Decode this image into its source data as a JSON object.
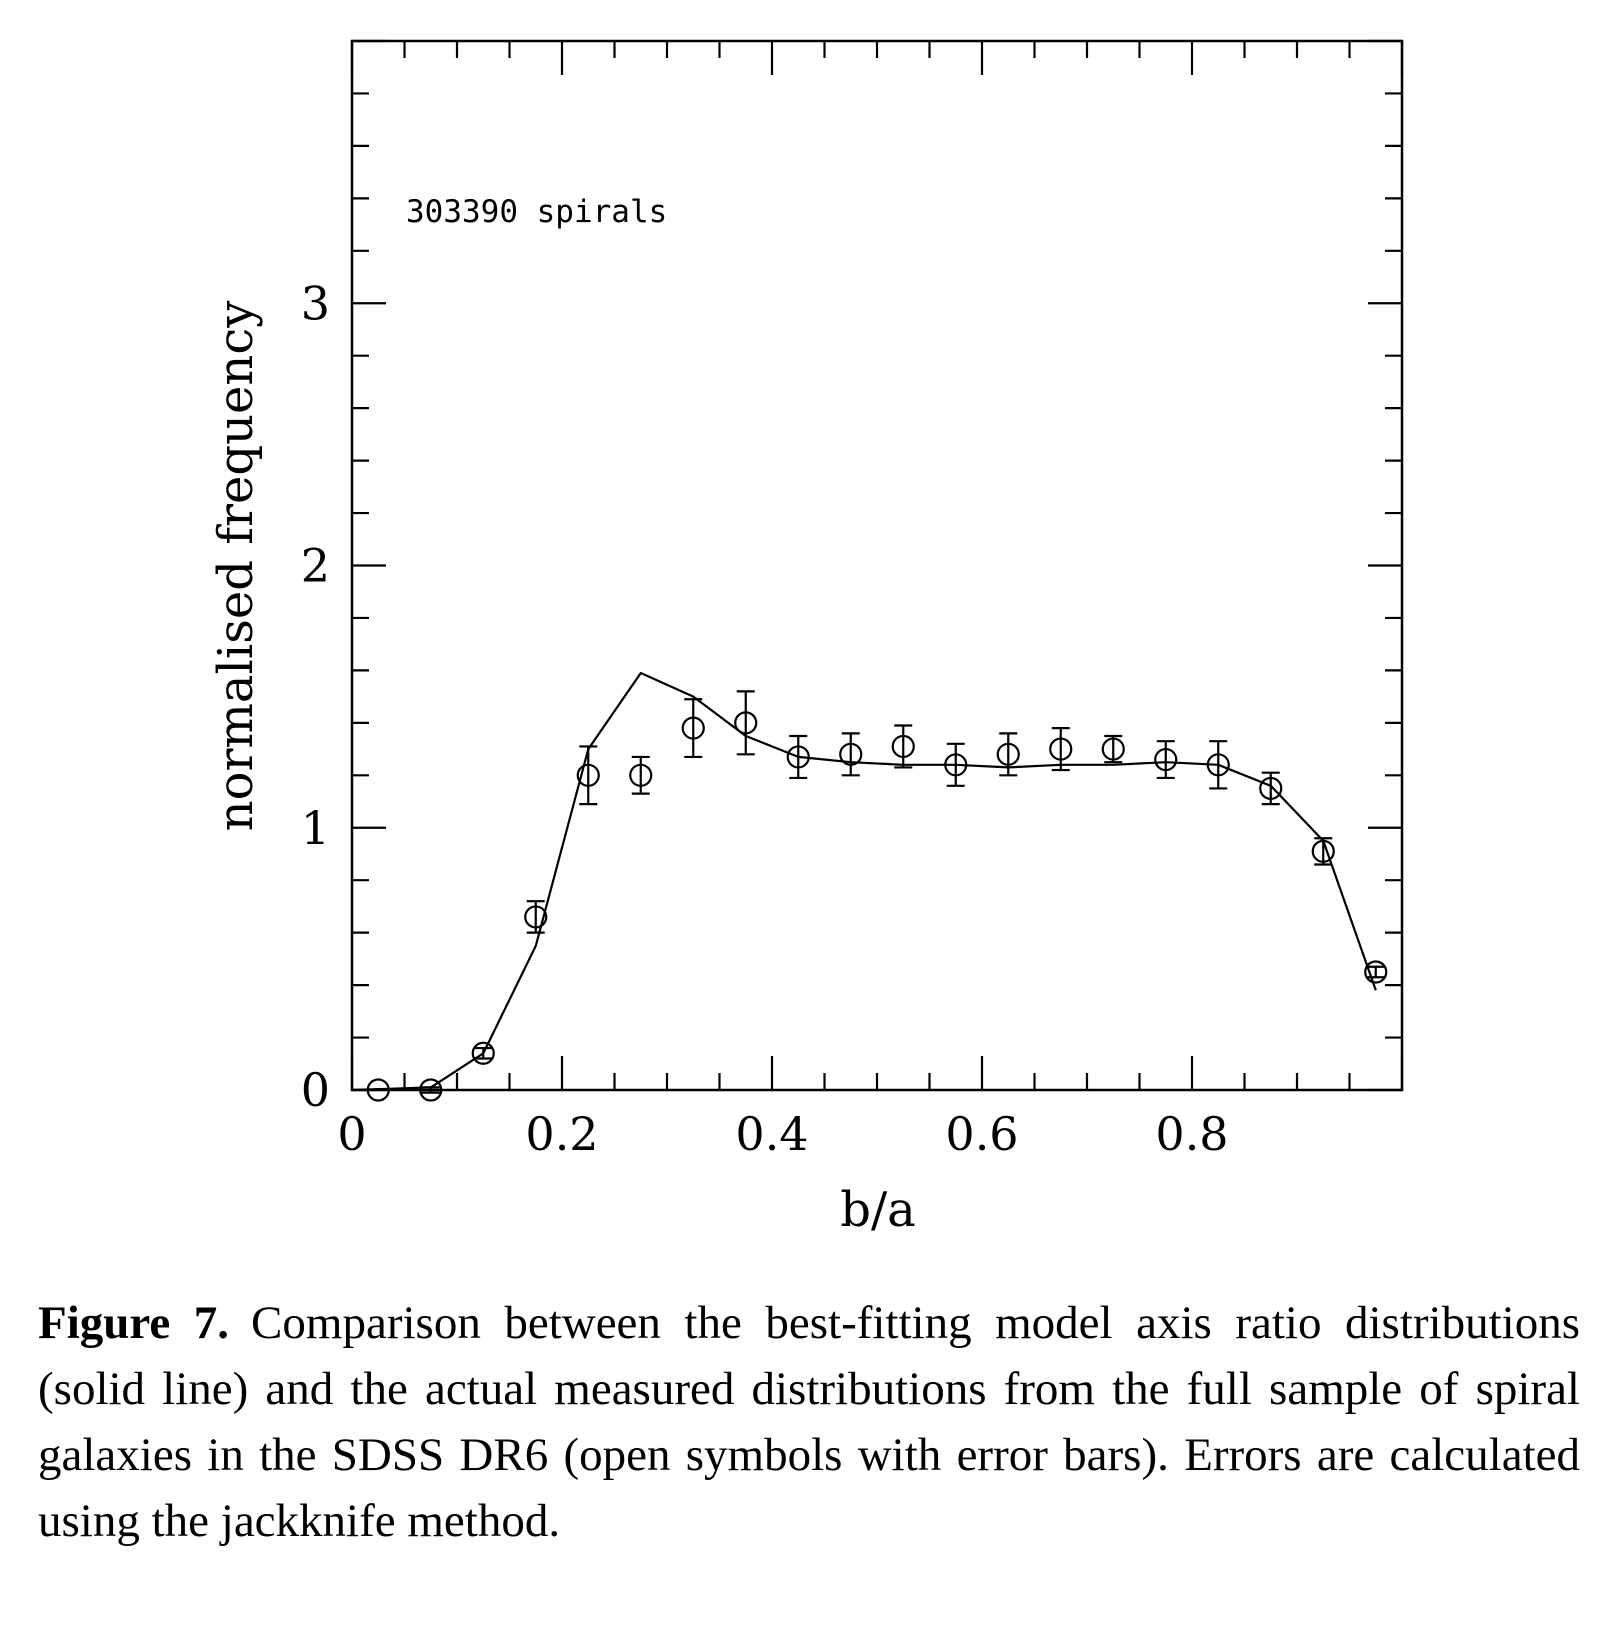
{
  "chart_data": {
    "type": "scatter",
    "xlabel": "b/a",
    "ylabel": "normalised frequency",
    "xlim": [
      0,
      1
    ],
    "ylim": [
      0,
      4
    ],
    "x_ticks": [
      0,
      0.2,
      0.4,
      0.6,
      0.8
    ],
    "x_tick_labels": [
      "0",
      "0.2",
      "0.4",
      "0.6",
      "0.8"
    ],
    "y_ticks": [
      0,
      1,
      2,
      3
    ],
    "y_tick_labels": [
      "0",
      "1",
      "2",
      "3"
    ],
    "grid": false,
    "legend": "none",
    "annotation": "303390 spirals",
    "series": [
      {
        "style": "solid-line",
        "x": [
          0.0,
          0.075,
          0.125,
          0.175,
          0.225,
          0.275,
          0.325,
          0.375,
          0.425,
          0.475,
          0.525,
          0.575,
          0.625,
          0.675,
          0.725,
          0.775,
          0.825,
          0.875,
          0.925,
          0.975
        ],
        "y": [
          0.0,
          0.01,
          0.14,
          0.55,
          1.3,
          1.59,
          1.5,
          1.35,
          1.27,
          1.25,
          1.24,
          1.24,
          1.23,
          1.24,
          1.24,
          1.25,
          1.24,
          1.16,
          0.95,
          0.38
        ]
      },
      {
        "style": "open-circles-with-error-bars",
        "x": [
          0.025,
          0.075,
          0.125,
          0.175,
          0.225,
          0.275,
          0.325,
          0.375,
          0.425,
          0.475,
          0.525,
          0.575,
          0.625,
          0.675,
          0.725,
          0.775,
          0.825,
          0.875,
          0.925,
          0.975
        ],
        "y": [
          0.0,
          0.0,
          0.14,
          0.66,
          1.2,
          1.2,
          1.38,
          1.4,
          1.27,
          1.28,
          1.31,
          1.24,
          1.28,
          1.3,
          1.3,
          1.26,
          1.24,
          1.15,
          0.91,
          0.45
        ],
        "yerr": [
          0.0,
          0.01,
          0.02,
          0.06,
          0.11,
          0.07,
          0.11,
          0.12,
          0.08,
          0.08,
          0.08,
          0.08,
          0.08,
          0.08,
          0.05,
          0.07,
          0.09,
          0.06,
          0.05,
          0.02
        ]
      }
    ]
  },
  "caption": {
    "label": "Figure 7.",
    "text": "Comparison between the best-fitting model axis ratio distributions (solid line) and the actual measured distributions from the full sample of spiral galaxies in the SDSS DR6 (open symbols with error bars). Errors are calculated using the jackknife method."
  }
}
